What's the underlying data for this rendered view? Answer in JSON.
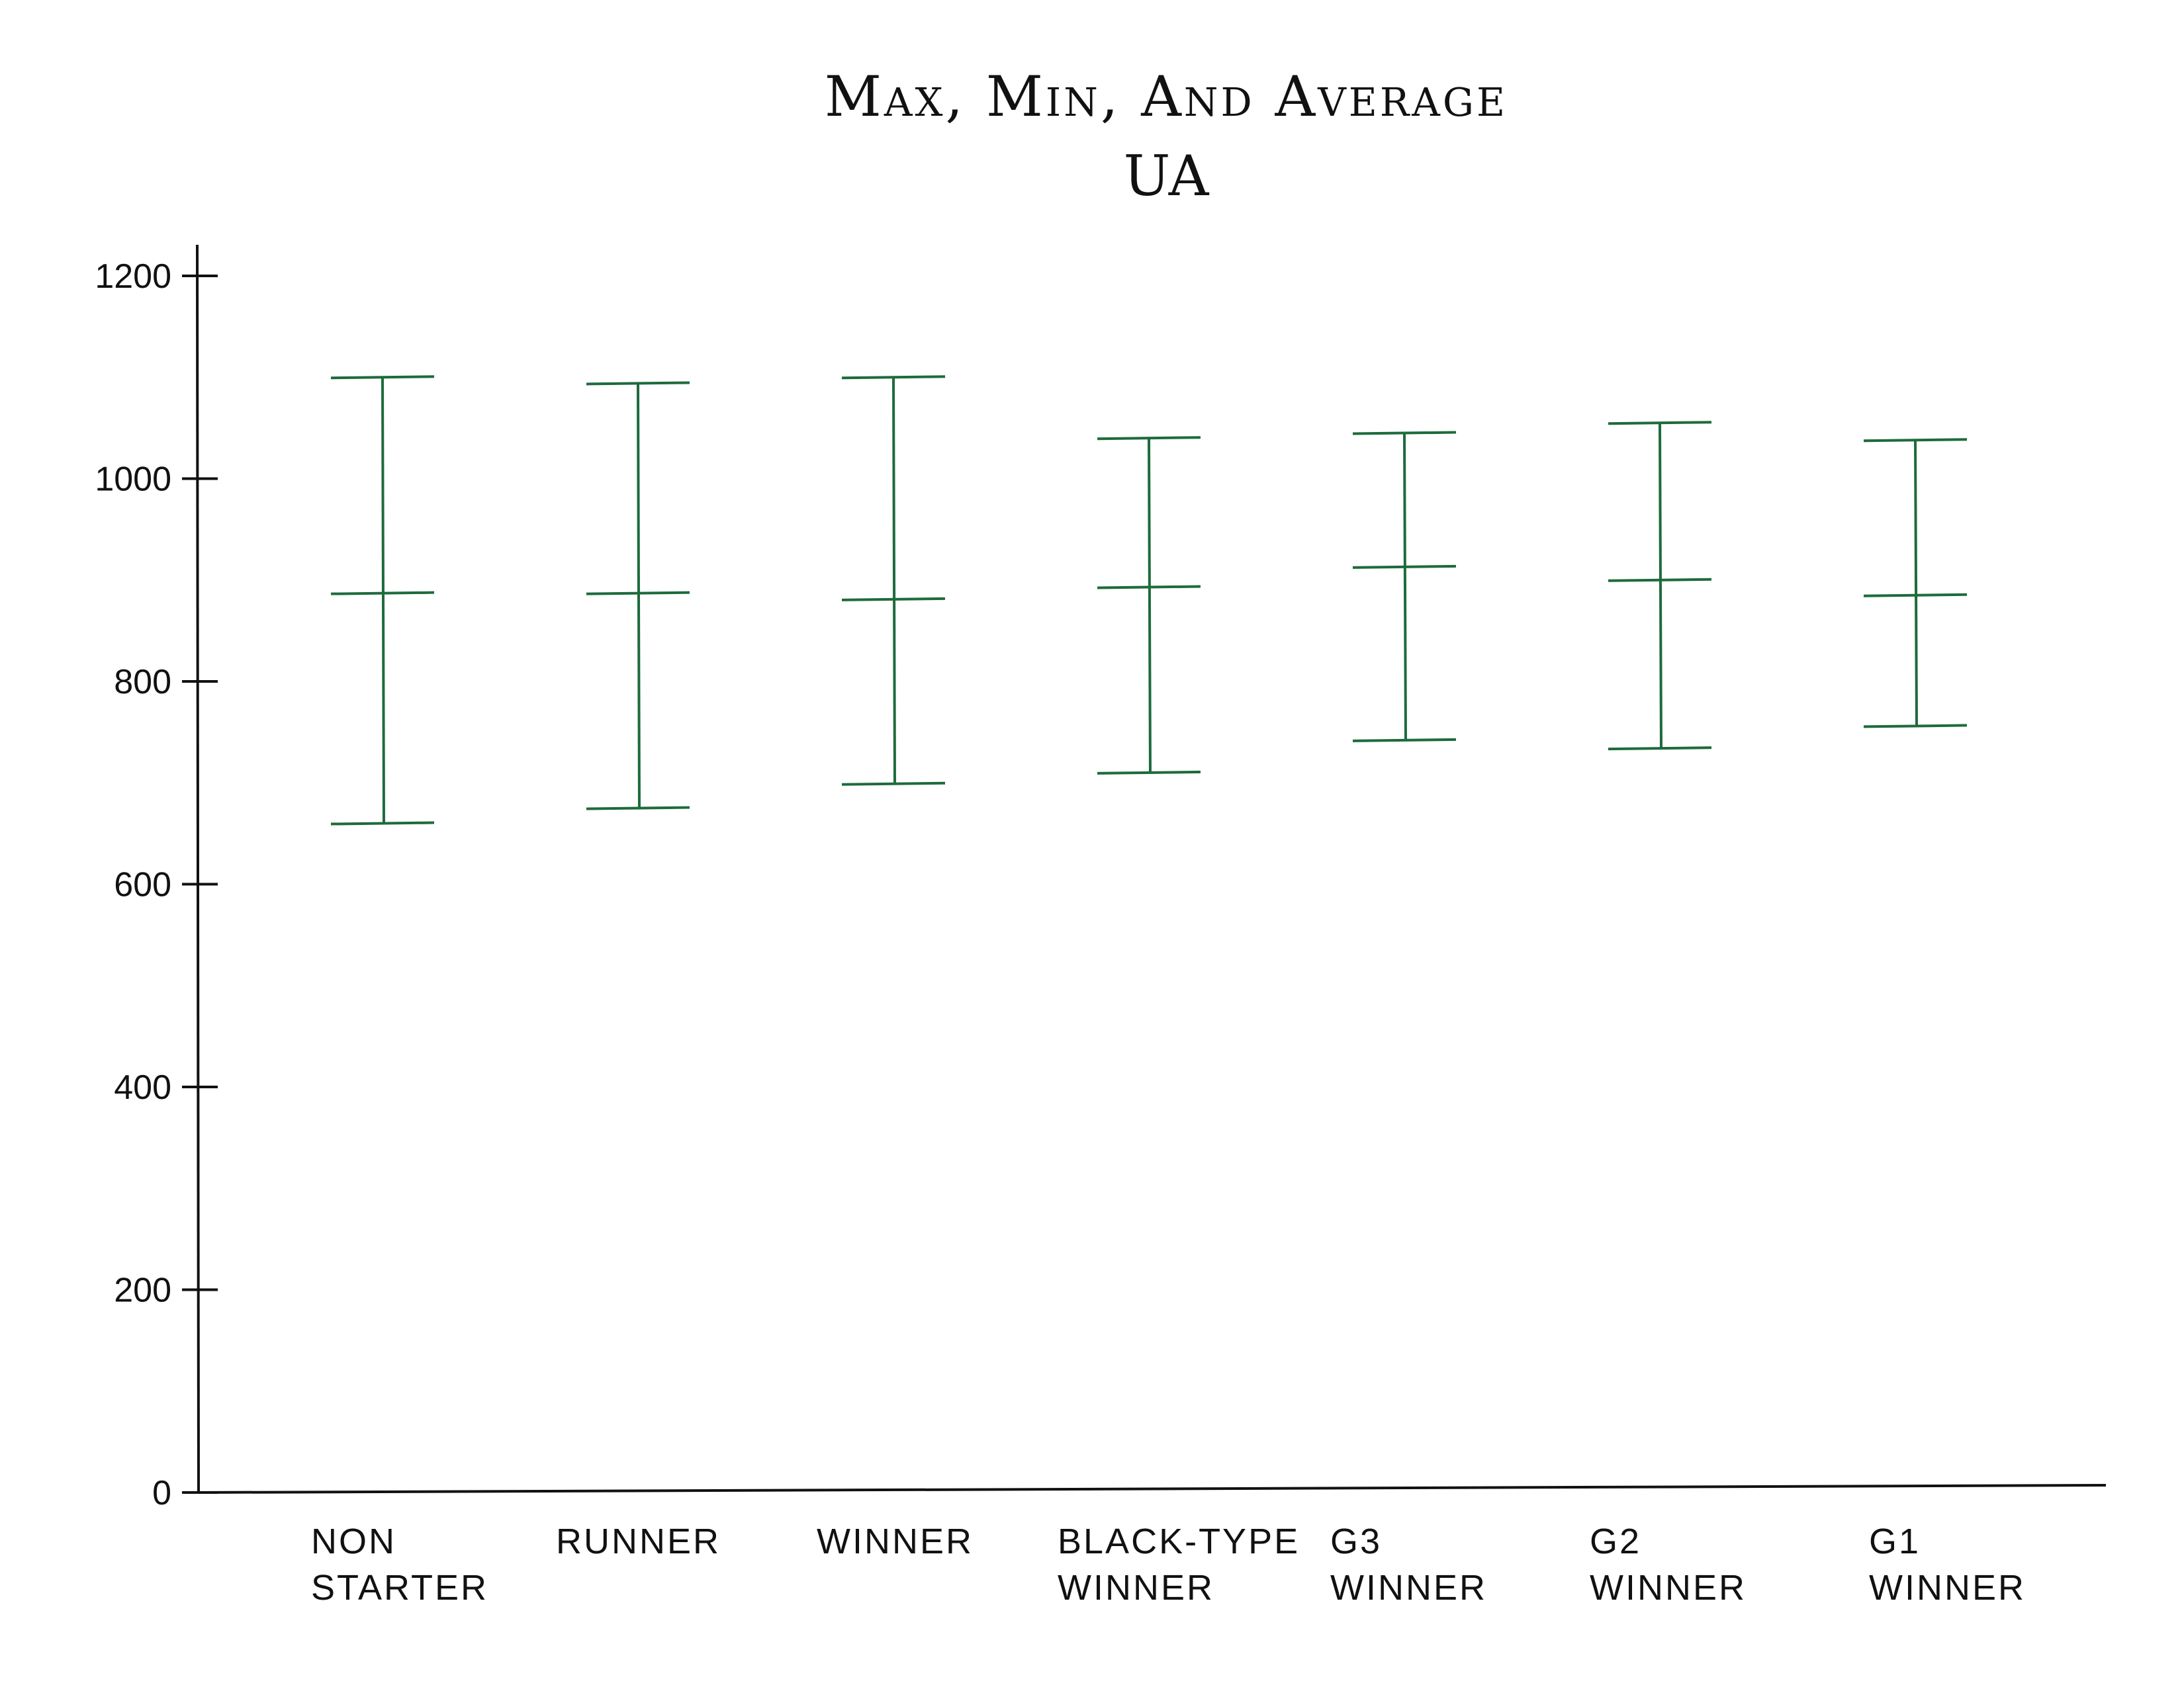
{
  "chart_data": {
    "type": "error-bar",
    "title": "Max, Min, And Average",
    "subtitle": "UA",
    "xlabel": "",
    "ylabel": "",
    "ylim": [
      0,
      1200
    ],
    "yticks": [
      0,
      200,
      400,
      600,
      800,
      1000,
      1200
    ],
    "grid": false,
    "legend": "none",
    "categories": [
      [
        "NON",
        "STARTER"
      ],
      [
        "RUNNER"
      ],
      [
        "WINNER"
      ],
      [
        "BLACK-TYPE",
        "WINNER"
      ],
      [
        "G3",
        "WINNER"
      ],
      [
        "G2",
        "WINNER"
      ],
      [
        "G1",
        "WINNER"
      ]
    ],
    "series": [
      {
        "name": "",
        "key": "max",
        "values": [
          1100,
          1094,
          1100,
          1040,
          1045,
          1055,
          1038
        ]
      },
      {
        "name": "",
        "key": "average",
        "values": [
          887,
          887,
          881,
          893,
          913,
          900,
          885
        ]
      },
      {
        "name": "",
        "key": "min",
        "values": [
          660,
          675,
          699,
          710,
          742,
          734,
          756
        ]
      }
    ],
    "colors": {
      "bars": "#1e6b3c",
      "axis": "#111111"
    }
  }
}
